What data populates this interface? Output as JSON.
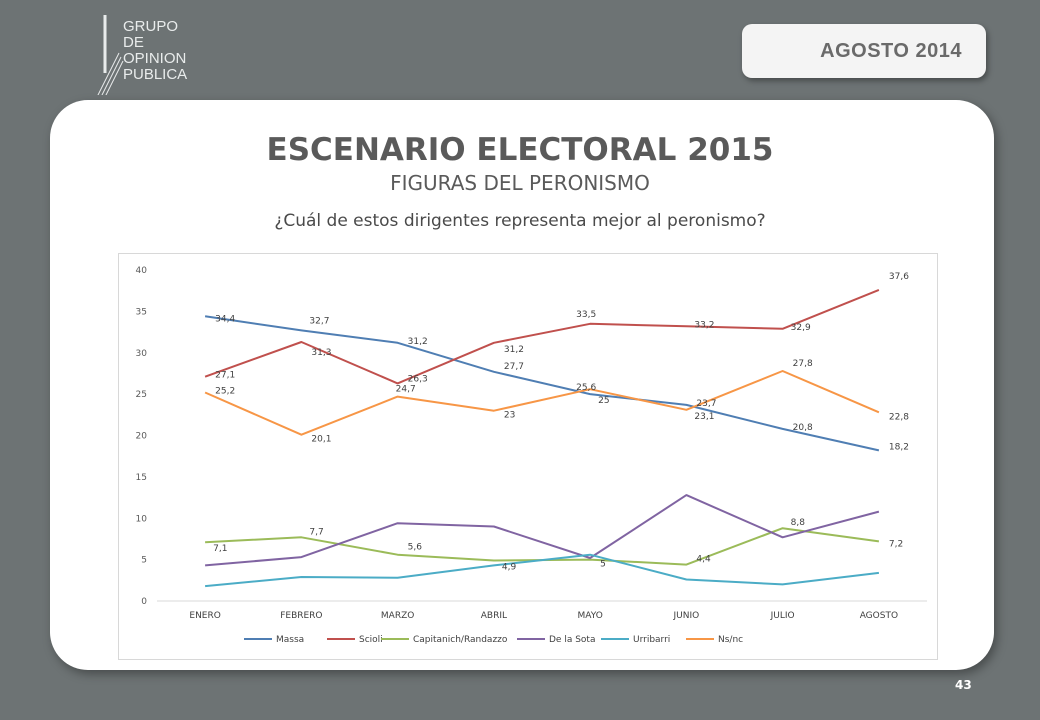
{
  "logo": {
    "lines": [
      "GRUPO",
      "DE",
      "OPINION",
      "PUBLICA"
    ]
  },
  "header": {
    "date": "AGOSTO  2014"
  },
  "slide": {
    "title": "ESCENARIO ELECTORAL 2015",
    "subtitle": "FIGURAS DEL PERONISMO",
    "question": "¿Cuál de estos dirigentes representa mejor al peronismo?",
    "page": "43"
  },
  "chart_data": {
    "type": "line",
    "categories": [
      "ENERO",
      "FEBRERO",
      "MARZO",
      "ABRIL",
      "MAYO",
      "JUNIO",
      "JULIO",
      "AGOSTO"
    ],
    "ylim": [
      0,
      40
    ],
    "yticks": [
      0,
      5,
      10,
      15,
      20,
      25,
      30,
      35,
      40
    ],
    "grid": false,
    "legend": "bottom",
    "series": [
      {
        "name": "Massa",
        "color": "#4f7eb3",
        "values": [
          34.4,
          32.7,
          31.2,
          27.7,
          25,
          23.7,
          20.8,
          18.2
        ],
        "labels": [
          "34,4",
          "32,7",
          "31,2",
          "27,7",
          "25",
          "23,7",
          "20,8",
          "18,2"
        ]
      },
      {
        "name": "Scioli",
        "color": "#c0504d",
        "values": [
          27.1,
          31.3,
          26.3,
          31.2,
          33.5,
          33.2,
          32.9,
          37.6
        ],
        "labels": [
          "27,1",
          "31,3",
          "26,3",
          "31,2",
          "33,5",
          "33,2",
          "32,9",
          "37,6"
        ]
      },
      {
        "name": "Capitanich/Randazzo",
        "color": "#9bbb59",
        "values": [
          7.1,
          7.7,
          5.6,
          4.9,
          5,
          4.4,
          8.8,
          7.2
        ],
        "labels": [
          "7,1",
          "7,7",
          "5,6",
          "4,9",
          "5",
          "4,4",
          "8,8",
          "7,2"
        ]
      },
      {
        "name": "De la Sota",
        "color": "#8064a2",
        "values": [
          4.3,
          5.3,
          9.4,
          9.0,
          5.2,
          12.8,
          7.7,
          10.8
        ],
        "labels": []
      },
      {
        "name": "Urribarri",
        "color": "#4bacc6",
        "values": [
          1.8,
          2.9,
          2.8,
          4.3,
          5.6,
          2.6,
          2.0,
          3.4
        ],
        "labels": []
      },
      {
        "name": "Ns/nc",
        "color": "#f79646",
        "values": [
          25.2,
          20.1,
          24.7,
          23,
          25.6,
          23.1,
          27.8,
          22.8
        ],
        "labels": [
          "25,2",
          "20,1",
          "24,7",
          "23",
          "25,6",
          "23,1",
          "27,8",
          "22,8"
        ]
      }
    ]
  }
}
